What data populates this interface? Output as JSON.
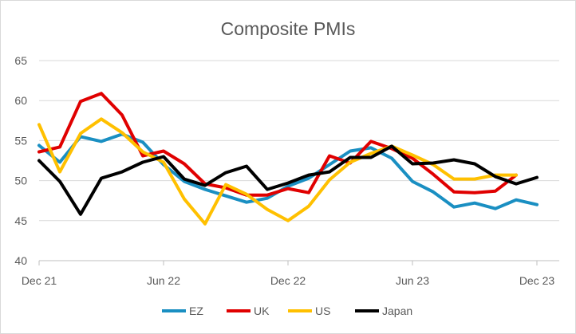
{
  "chart_data": {
    "type": "line",
    "title": "Composite PMIs",
    "xlabel": "",
    "ylabel": "",
    "ylim": [
      40,
      65
    ],
    "y_ticks": [
      "40",
      "45",
      "50",
      "55",
      "60",
      "65"
    ],
    "x_tick_labels": [
      "Dec 21",
      "Jun 22",
      "Dec 22",
      "Jun 23",
      "Dec 23"
    ],
    "x": [
      "Dec 21",
      "Jan 22",
      "Feb 22",
      "Mar 22",
      "Apr 22",
      "May 22",
      "Jun 22",
      "Jul 22",
      "Aug 22",
      "Sep 22",
      "Oct 22",
      "Nov 22",
      "Dec 22",
      "Jan 23",
      "Feb 23",
      "Mar 23",
      "Apr 23",
      "May 23",
      "Jun 23",
      "Jul 23",
      "Aug 23",
      "Sep 23",
      "Oct 23",
      "Nov 23",
      "Dec 23"
    ],
    "grid": true,
    "legend_position": "bottom",
    "series": [
      {
        "name": "EZ",
        "color": "#1a8fc2",
        "values": [
          54.4,
          52.3,
          55.5,
          54.9,
          55.8,
          54.8,
          52.0,
          49.9,
          48.9,
          48.1,
          47.3,
          47.8,
          49.3,
          50.3,
          52.0,
          53.7,
          54.1,
          52.8,
          49.9,
          48.6,
          46.7,
          47.2,
          46.5,
          47.6,
          47.0
        ]
      },
      {
        "name": "UK",
        "color": "#e00000",
        "values": [
          53.6,
          54.2,
          59.9,
          60.9,
          58.2,
          53.1,
          53.7,
          52.1,
          49.6,
          49.1,
          48.2,
          48.2,
          49.0,
          48.5,
          53.1,
          52.2,
          54.9,
          54.0,
          52.8,
          50.8,
          48.6,
          48.5,
          48.7,
          50.7,
          null
        ]
      },
      {
        "name": "US",
        "color": "#ffc000",
        "values": [
          57.0,
          51.1,
          55.9,
          57.7,
          56.0,
          53.6,
          52.3,
          47.7,
          44.6,
          49.5,
          48.3,
          46.4,
          45.0,
          46.8,
          50.1,
          52.3,
          53.4,
          54.3,
          53.2,
          52.0,
          50.2,
          50.2,
          50.7,
          50.7,
          null
        ]
      },
      {
        "name": "Japan",
        "color": "#000000",
        "values": [
          52.5,
          49.9,
          45.8,
          50.3,
          51.1,
          52.3,
          53.0,
          50.2,
          49.4,
          51.0,
          51.8,
          48.9,
          49.7,
          50.7,
          51.1,
          52.9,
          52.9,
          54.3,
          52.1,
          52.2,
          52.6,
          52.1,
          50.5,
          49.6,
          50.4
        ]
      }
    ]
  }
}
